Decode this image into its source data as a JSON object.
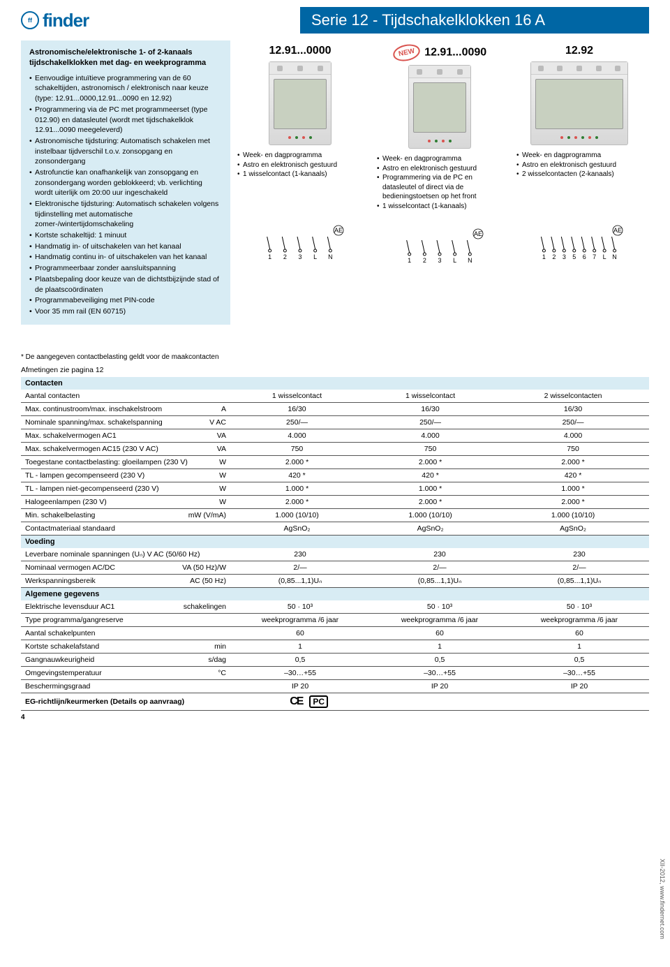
{
  "header": {
    "logo_initials": "ff",
    "brand": "finder",
    "title": "Serie 12 - Tijdschakelklokken 16 A"
  },
  "intro": {
    "title": "Astronomische/elektronische 1- of 2-kanaals tijdschakelklokken met dag- en weekprogramma",
    "bullets": [
      "Eenvoudige intuïtieve programmering van de 60 schakeltijden, astronomisch / elektronisch naar keuze (type: 12.91...0000,12.91...0090 en 12.92)",
      "Programmering via de PC met programmeerset (type 012.90) en datasleutel (wordt met tijdschakelklok 12.91...0090 meegeleverd)",
      "Astronomische tijdsturing: Automatisch schakelen met instelbaar tijdverschil t.o.v. zonsopgang en zonsondergang",
      "Astrofunctie kan onafhankelijk van zonsopgang en zonsondergang worden geblokkeerd; vb. verlichting wordt uiterlijk om 20:00 uur ingeschakeld",
      "Elektronische tijdsturing: Automatisch schakelen volgens tijdinstelling met automatische zomer-/wintertijdomschakeling",
      "Kortste schakeltijd: 1 minuut",
      "Handmatig in- of uitschakelen van het kanaal",
      "Handmatig continu in- of uitschakelen van het kanaal",
      "Programmeerbaar zonder aansluitspanning",
      "Plaatsbepaling door keuze van de dichtstbijzijnde stad of de plaatscoördinaten",
      "Programmabeveiliging met PIN-code",
      "Voor 35 mm rail (EN 60715)"
    ]
  },
  "products": [
    {
      "code": "12.91...0000",
      "new": false,
      "dot_colors": [
        "#d9534f",
        "#2e7d32",
        "#d9534f",
        "#2e7d32"
      ],
      "wide": false,
      "features": [
        "Week- en dagprogramma",
        "Astro en elektronisch gestuurd",
        "1 wisselcontact (1-kanaals)"
      ],
      "terminals": [
        "1",
        "2",
        "3",
        "L",
        "N"
      ]
    },
    {
      "code": "12.91...0090",
      "new": true,
      "dot_colors": [
        "#d9534f",
        "#2e7d32",
        "#d9534f",
        "#2e7d32"
      ],
      "wide": false,
      "features": [
        "Week- en dagprogramma",
        "Astro en elektronisch gestuurd",
        "Programmering via de PC en datasleutel of direct via de bedieningstoetsen op het front",
        "1 wisselcontact (1-kanaals)"
      ],
      "terminals": [
        "1",
        "2",
        "3",
        "L",
        "N"
      ]
    },
    {
      "code": "12.92",
      "new": false,
      "dot_colors": [
        "#d9534f",
        "#2e7d32",
        "#d9534f",
        "#2e7d32",
        "#d9534f",
        "#2e7d32"
      ],
      "wide": true,
      "features": [
        "Week- en dagprogramma",
        "Astro en elektronisch gestuurd",
        "2 wisselcontacten (2-kanaals)"
      ],
      "terminals": [
        "1",
        "2",
        "3",
        "5",
        "6",
        "7",
        "L",
        "N"
      ]
    }
  ],
  "footnote": "* De aangegeven contactbelasting geldt voor de maakcontacten",
  "dim_note": "Afmetingen zie pagina 12",
  "spec_sections": [
    {
      "title": "Contacten",
      "rows": [
        {
          "label": "Aantal contacten",
          "unit": "",
          "vals": [
            "1 wisselcontact",
            "1 wisselcontact",
            "2 wisselcontacten"
          ]
        },
        {
          "label": "Max. continustroom/max. inschakelstroom",
          "unit": "A",
          "vals": [
            "16/30",
            "16/30",
            "16/30"
          ]
        },
        {
          "label": "Nominale spanning/max. schakelspanning",
          "unit": "V AC",
          "vals": [
            "250/—",
            "250/—",
            "250/—"
          ]
        },
        {
          "label": "Max. schakelvermogen AC1",
          "unit": "VA",
          "vals": [
            "4.000",
            "4.000",
            "4.000"
          ]
        },
        {
          "label": "Max. schakelvermogen AC15 (230 V AC)",
          "unit": "VA",
          "vals": [
            "750",
            "750",
            "750"
          ]
        },
        {
          "label": "Toegestane contactbelasting: gloeilampen (230 V)",
          "unit": "W",
          "vals": [
            "2.000 *",
            "2.000 *",
            "2.000 *"
          ]
        },
        {
          "label": "TL - lampen gecompenseerd (230 V)",
          "unit": "W",
          "vals": [
            "420 *",
            "420 *",
            "420 *"
          ]
        },
        {
          "label": "TL - lampen niet-gecompenseerd (230 V)",
          "unit": "W",
          "vals": [
            "1.000 *",
            "1.000 *",
            "1.000 *"
          ]
        },
        {
          "label": "Halogeenlampen (230 V)",
          "unit": "W",
          "vals": [
            "2.000 *",
            "2.000 *",
            "2.000 *"
          ]
        },
        {
          "label": "Min. schakelbelasting",
          "unit": "mW (V/mA)",
          "vals": [
            "1.000 (10/10)",
            "1.000 (10/10)",
            "1.000 (10/10)"
          ]
        },
        {
          "label": "Contactmateriaal standaard",
          "unit": "",
          "vals": [
            "AgSnO₂",
            "AgSnO₂",
            "AgSnO₂"
          ]
        }
      ]
    },
    {
      "title": "Voeding",
      "rows": [
        {
          "label": "Leverbare nominale spanningen (Uₙ) V AC (50/60 Hz)",
          "unit": "",
          "vals": [
            "230",
            "230",
            "230"
          ]
        },
        {
          "label": "Nominaal vermogen AC/DC",
          "unit": "VA (50 Hz)/W",
          "vals": [
            "2/—",
            "2/—",
            "2/—"
          ]
        },
        {
          "label": "Werkspanningsbereik",
          "unit": "AC (50 Hz)",
          "vals": [
            "(0,85...1,1)Uₙ",
            "(0,85...1,1)Uₙ",
            "(0,85...1,1)Uₙ"
          ]
        }
      ]
    },
    {
      "title": "Algemene gegevens",
      "rows": [
        {
          "label": "Elektrische levensduur AC1",
          "unit": "schakelingen",
          "vals": [
            "50 · 10³",
            "50 · 10³",
            "50 · 10³"
          ]
        },
        {
          "label": "Type programma/gangreserve",
          "unit": "",
          "vals": [
            "weekprogramma /6 jaar",
            "weekprogramma /6 jaar",
            "weekprogramma /6 jaar"
          ]
        },
        {
          "label": "Aantal schakelpunten",
          "unit": "",
          "vals": [
            "60",
            "60",
            "60"
          ]
        },
        {
          "label": "Kortste schakelafstand",
          "unit": "min",
          "vals": [
            "1",
            "1",
            "1"
          ]
        },
        {
          "label": "Gangnauwkeurigheid",
          "unit": "s/dag",
          "vals": [
            "0,5",
            "0,5",
            "0,5"
          ]
        },
        {
          "label": "Omgevingstemperatuur",
          "unit": "°C",
          "vals": [
            "–30…+55",
            "–30…+55",
            "–30…+55"
          ]
        },
        {
          "label": "Beschermingsgraad",
          "unit": "",
          "vals": [
            "IP 20",
            "IP 20",
            "IP 20"
          ]
        }
      ]
    }
  ],
  "eg_row": "EG-richtlijn/keurmerken (Details op aanvraag)",
  "new_label": "NEW",
  "ae_label": "AE",
  "page_num": "4",
  "side_text": "XII-2012, www.findernet.com"
}
